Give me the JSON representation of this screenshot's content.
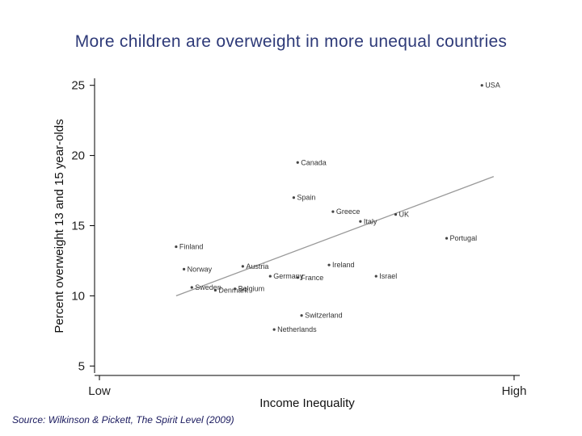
{
  "page": {
    "title": "More children are overweight in more unequal countries",
    "source": "Source: Wilkinson & Pickett, The Spirit Level (2009)"
  },
  "chart_data": {
    "type": "scatter",
    "title": "More children are overweight in more unequal countries",
    "xlabel": "Income Inequality",
    "ylabel": "Percent overweight 13 and 15 year-olds",
    "x_tick_labels": [
      "Low",
      "High"
    ],
    "xlim": [
      0,
      100
    ],
    "ylim": [
      4.5,
      25.5
    ],
    "y_ticks": [
      5,
      10,
      15,
      20,
      25
    ],
    "grid": false,
    "points": [
      {
        "label": "USA",
        "x": 92,
        "y": 25.0
      },
      {
        "label": "Canada",
        "x": 45,
        "y": 19.5
      },
      {
        "label": "Spain",
        "x": 44,
        "y": 17.0
      },
      {
        "label": "Greece",
        "x": 54,
        "y": 16.0
      },
      {
        "label": "Italy",
        "x": 61,
        "y": 15.3
      },
      {
        "label": "UK",
        "x": 70,
        "y": 15.8
      },
      {
        "label": "Portugal",
        "x": 83,
        "y": 14.1
      },
      {
        "label": "Finland",
        "x": 14,
        "y": 13.5
      },
      {
        "label": "Austria",
        "x": 31,
        "y": 12.1
      },
      {
        "label": "Ireland",
        "x": 53,
        "y": 12.2
      },
      {
        "label": "Norway",
        "x": 16,
        "y": 11.9
      },
      {
        "label": "Germany",
        "x": 38,
        "y": 11.4
      },
      {
        "label": "France",
        "x": 45,
        "y": 11.3
      },
      {
        "label": "Israel",
        "x": 65,
        "y": 11.4
      },
      {
        "label": "Sweden",
        "x": 18,
        "y": 10.6
      },
      {
        "label": "Denmark",
        "x": 24,
        "y": 10.4
      },
      {
        "label": "Belgium",
        "x": 29,
        "y": 10.5
      },
      {
        "label": "Switzerland",
        "x": 46,
        "y": 8.6
      },
      {
        "label": "Netherlands",
        "x": 39,
        "y": 7.6
      }
    ],
    "trendline": {
      "x": [
        14,
        95
      ],
      "y": [
        10.0,
        18.5
      ]
    },
    "colors": {
      "title": "#2e3a78",
      "points": "#444444",
      "trend": "#999999",
      "axis": "#000000",
      "source": "#1a1a5e"
    }
  }
}
